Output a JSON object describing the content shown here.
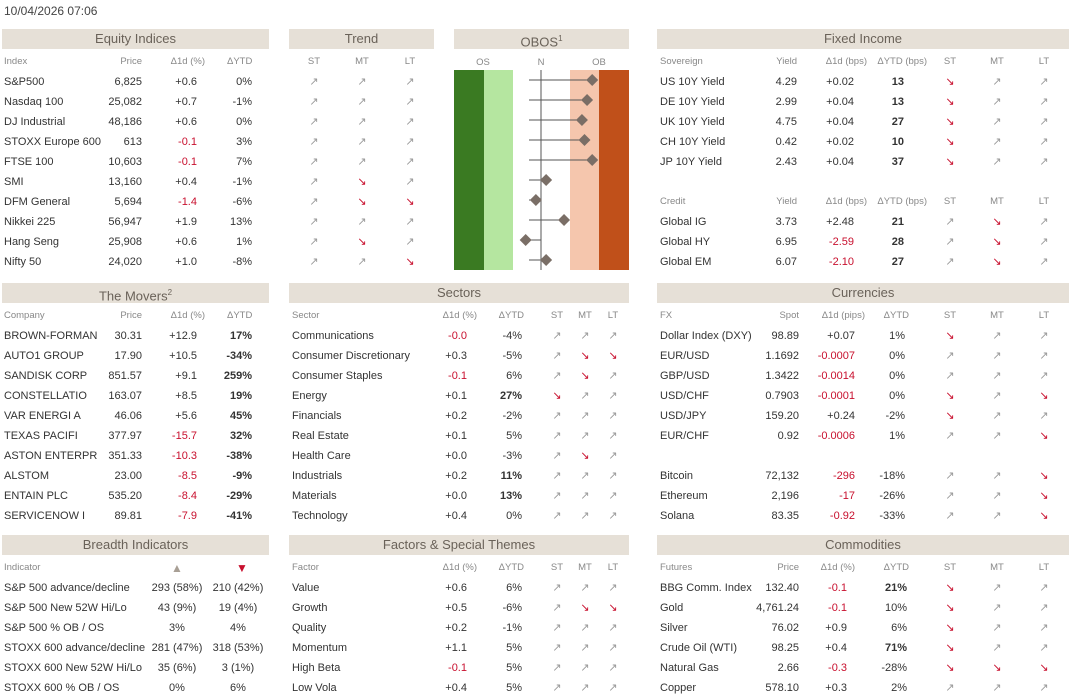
{
  "timestamp": "10/04/2026 07:06",
  "equity": {
    "title": "Equity Indices",
    "cols": [
      "Index",
      "Price",
      "Δ1d (%)",
      "ΔYTD"
    ],
    "rows": [
      {
        "name": "S&P500",
        "price": "6,825",
        "d1": "+0.6",
        "ytd": "0%",
        "d1neg": false
      },
      {
        "name": "Nasdaq 100",
        "price": "25,082",
        "d1": "+0.7",
        "ytd": "-1%",
        "d1neg": false
      },
      {
        "name": "DJ Industrial",
        "price": "48,186",
        "d1": "+0.6",
        "ytd": "0%",
        "d1neg": false
      },
      {
        "name": "STOXX Europe 600",
        "price": "613",
        "d1": "-0.1",
        "ytd": "3%",
        "d1neg": true
      },
      {
        "name": "FTSE 100",
        "price": "10,603",
        "d1": "-0.1",
        "ytd": "7%",
        "d1neg": true
      },
      {
        "name": "SMI",
        "price": "13,160",
        "d1": "+0.4",
        "ytd": "-1%",
        "d1neg": false
      },
      {
        "name": "DFM General",
        "price": "5,694",
        "d1": "-1.4",
        "ytd": "-6%",
        "d1neg": true
      },
      {
        "name": "Nikkei 225",
        "price": "56,947",
        "d1": "+1.9",
        "ytd": "13%",
        "d1neg": false
      },
      {
        "name": "Hang Seng",
        "price": "25,908",
        "d1": "+0.6",
        "ytd": "1%",
        "d1neg": false
      },
      {
        "name": "Nifty 50",
        "price": "24,020",
        "d1": "+1.0",
        "ytd": "-8%",
        "d1neg": false
      }
    ]
  },
  "trend": {
    "title": "Trend",
    "cols": [
      "ST",
      "MT",
      "LT"
    ],
    "rows": [
      [
        "up",
        "up",
        "up"
      ],
      [
        "up",
        "up",
        "up"
      ],
      [
        "up",
        "up",
        "up"
      ],
      [
        "up",
        "up",
        "up"
      ],
      [
        "up",
        "up",
        "up"
      ],
      [
        "up",
        "dn",
        "up"
      ],
      [
        "up",
        "dn",
        "dn"
      ],
      [
        "up",
        "up",
        "up"
      ],
      [
        "up",
        "dn",
        "up"
      ],
      [
        "up",
        "up",
        "dn"
      ]
    ]
  },
  "obos": {
    "title": "OBOS",
    "sup": "1",
    "labels": [
      "OS",
      "N",
      "OB"
    ],
    "colors": {
      "os_dark": "#3a7a22",
      "os_light": "#b5e6a0",
      "ob_light": "#f5c6ad",
      "ob_dark": "#c0501a",
      "marker": "#7a6e66"
    },
    "values": [
      2.0,
      1.8,
      1.6,
      1.7,
      2.0,
      0.2,
      -0.2,
      0.9,
      -0.6,
      0.2
    ]
  },
  "fixed_income": {
    "title": "Fixed Income",
    "cols": [
      "Sovereign",
      "Yield",
      "Δ1d (bps)",
      "ΔYTD (bps)",
      "ST",
      "MT",
      "LT"
    ],
    "sovereign": [
      {
        "name": "US 10Y Yield",
        "yield": "4.29",
        "d1": "+0.02",
        "ytd": "13",
        "st": "dn",
        "mt": "up",
        "lt": "up",
        "d1neg": false
      },
      {
        "name": "DE 10Y Yield",
        "yield": "2.99",
        "d1": "+0.04",
        "ytd": "13",
        "st": "dn",
        "mt": "up",
        "lt": "up",
        "d1neg": false
      },
      {
        "name": "UK 10Y Yield",
        "yield": "4.75",
        "d1": "+0.04",
        "ytd": "27",
        "st": "dn",
        "mt": "up",
        "lt": "up",
        "d1neg": false
      },
      {
        "name": "CH 10Y Yield",
        "yield": "0.42",
        "d1": "+0.02",
        "ytd": "10",
        "st": "dn",
        "mt": "up",
        "lt": "up",
        "d1neg": false
      },
      {
        "name": "JP 10Y Yield",
        "yield": "2.43",
        "d1": "+0.04",
        "ytd": "37",
        "st": "dn",
        "mt": "up",
        "lt": "up",
        "d1neg": false
      }
    ],
    "credit_cols": [
      "Credit",
      "Yield",
      "Δ1d (bps)",
      "ΔYTD (bps)",
      "ST",
      "MT",
      "LT"
    ],
    "credit": [
      {
        "name": "Global IG",
        "yield": "3.73",
        "d1": "+2.48",
        "ytd": "21",
        "st": "up",
        "mt": "dn",
        "lt": "up",
        "d1neg": false
      },
      {
        "name": "Global HY",
        "yield": "6.95",
        "d1": "-2.59",
        "ytd": "28",
        "st": "up",
        "mt": "dn",
        "lt": "up",
        "d1neg": true
      },
      {
        "name": "Global EM",
        "yield": "6.07",
        "d1": "-2.10",
        "ytd": "27",
        "st": "up",
        "mt": "dn",
        "lt": "up",
        "d1neg": true
      }
    ]
  },
  "movers": {
    "title": "The Movers",
    "sup": "2",
    "cols": [
      "Company",
      "Price",
      "Δ1d (%)",
      "ΔYTD"
    ],
    "rows": [
      {
        "name": "BROWN-FORMAN",
        "price": "30.31",
        "d1": "+12.9",
        "ytd": "17%",
        "d1neg": false
      },
      {
        "name": "AUTO1 GROUP",
        "price": "17.90",
        "d1": "+10.5",
        "ytd": "-34%",
        "d1neg": false
      },
      {
        "name": "SANDISK CORP",
        "price": "851.57",
        "d1": "+9.1",
        "ytd": "259%",
        "d1neg": false
      },
      {
        "name": "CONSTELLATIO",
        "price": "163.07",
        "d1": "+8.5",
        "ytd": "19%",
        "d1neg": false
      },
      {
        "name": "VAR ENERGI A",
        "price": "46.06",
        "d1": "+5.6",
        "ytd": "45%",
        "d1neg": false
      },
      {
        "name": "TEXAS PACIFI",
        "price": "377.97",
        "d1": "-15.7",
        "ytd": "32%",
        "d1neg": true
      },
      {
        "name": "ASTON ENTERPR",
        "price": "351.33",
        "d1": "-10.3",
        "ytd": "-38%",
        "d1neg": true
      },
      {
        "name": "ALSTOM",
        "price": "23.00",
        "d1": "-8.5",
        "ytd": "-9%",
        "d1neg": true
      },
      {
        "name": "ENTAIN PLC",
        "price": "535.20",
        "d1": "-8.4",
        "ytd": "-29%",
        "d1neg": true
      },
      {
        "name": "SERVICENOW I",
        "price": "89.81",
        "d1": "-7.9",
        "ytd": "-41%",
        "d1neg": true
      }
    ]
  },
  "sectors": {
    "title": "Sectors",
    "cols": [
      "Sector",
      "Δ1d (%)",
      "ΔYTD",
      "ST",
      "MT",
      "LT"
    ],
    "rows": [
      {
        "name": "Communications",
        "d1": "-0.0",
        "ytd": "-4%",
        "st": "up",
        "mt": "up",
        "lt": "up",
        "d1neg": true,
        "bold": false
      },
      {
        "name": "Consumer Discretionary",
        "d1": "+0.3",
        "ytd": "-5%",
        "st": "up",
        "mt": "dn",
        "lt": "dn",
        "d1neg": false,
        "bold": false
      },
      {
        "name": "Consumer Staples",
        "d1": "-0.1",
        "ytd": "6%",
        "st": "up",
        "mt": "dn",
        "lt": "up",
        "d1neg": true,
        "bold": false
      },
      {
        "name": "Energy",
        "d1": "+0.1",
        "ytd": "27%",
        "st": "dn",
        "mt": "up",
        "lt": "up",
        "d1neg": false,
        "bold": true
      },
      {
        "name": "Financials",
        "d1": "+0.2",
        "ytd": "-2%",
        "st": "up",
        "mt": "up",
        "lt": "up",
        "d1neg": false,
        "bold": false
      },
      {
        "name": "Real Estate",
        "d1": "+0.1",
        "ytd": "5%",
        "st": "up",
        "mt": "up",
        "lt": "up",
        "d1neg": false,
        "bold": false
      },
      {
        "name": "Health Care",
        "d1": "+0.0",
        "ytd": "-3%",
        "st": "up",
        "mt": "dn",
        "lt": "up",
        "d1neg": false,
        "bold": false
      },
      {
        "name": "Industrials",
        "d1": "+0.2",
        "ytd": "11%",
        "st": "up",
        "mt": "up",
        "lt": "up",
        "d1neg": false,
        "bold": true
      },
      {
        "name": "Materials",
        "d1": "+0.0",
        "ytd": "13%",
        "st": "up",
        "mt": "up",
        "lt": "up",
        "d1neg": false,
        "bold": true
      },
      {
        "name": "Technology",
        "d1": "+0.4",
        "ytd": "0%",
        "st": "up",
        "mt": "up",
        "lt": "up",
        "d1neg": false,
        "bold": false
      }
    ]
  },
  "currencies": {
    "title": "Currencies",
    "cols": [
      "FX",
      "Spot",
      "Δ1d (pips)",
      "ΔYTD",
      "ST",
      "MT",
      "LT"
    ],
    "fx": [
      {
        "name": "Dollar Index (DXY)",
        "spot": "98.89",
        "d1": "+0.07",
        "ytd": "1%",
        "st": "dn",
        "mt": "up",
        "lt": "up",
        "d1neg": false
      },
      {
        "name": "EUR/USD",
        "spot": "1.1692",
        "d1": "-0.0007",
        "ytd": "0%",
        "st": "up",
        "mt": "up",
        "lt": "up",
        "d1neg": true
      },
      {
        "name": "GBP/USD",
        "spot": "1.3422",
        "d1": "-0.0014",
        "ytd": "0%",
        "st": "up",
        "mt": "up",
        "lt": "up",
        "d1neg": true
      },
      {
        "name": "USD/CHF",
        "spot": "0.7903",
        "d1": "-0.0001",
        "ytd": "0%",
        "st": "dn",
        "mt": "up",
        "lt": "dn",
        "d1neg": true
      },
      {
        "name": "USD/JPY",
        "spot": "159.20",
        "d1": "+0.24",
        "ytd": "-2%",
        "st": "dn",
        "mt": "up",
        "lt": "up",
        "d1neg": false
      },
      {
        "name": "EUR/CHF",
        "spot": "0.92",
        "d1": "-0.0006",
        "ytd": "1%",
        "st": "up",
        "mt": "up",
        "lt": "dn",
        "d1neg": true
      }
    ],
    "crypto": [
      {
        "name": "Bitcoin",
        "spot": "72,132",
        "d1": "-296",
        "ytd": "-18%",
        "st": "up",
        "mt": "up",
        "lt": "dn",
        "d1neg": true
      },
      {
        "name": "Ethereum",
        "spot": "2,196",
        "d1": "-17",
        "ytd": "-26%",
        "st": "up",
        "mt": "up",
        "lt": "dn",
        "d1neg": true
      },
      {
        "name": "Solana",
        "spot": "83.35",
        "d1": "-0.92",
        "ytd": "-33%",
        "st": "up",
        "mt": "up",
        "lt": "dn",
        "d1neg": true
      }
    ]
  },
  "breadth": {
    "title": "Breadth Indicators",
    "cols": [
      "Indicator"
    ],
    "up_symbol": "▲",
    "down_symbol": "▼",
    "rows": [
      {
        "name": "S&P 500 advance/decline",
        "a": "293 (58%)",
        "b": "210 (42%)"
      },
      {
        "name": "S&P 500 New 52W Hi/Lo",
        "a": "43 (9%)",
        "b": "19 (4%)"
      },
      {
        "name": "S&P 500 % OB / OS",
        "a": "3%",
        "b": "4%"
      },
      {
        "name": "STOXX 600 advance/decline",
        "a": "281 (47%)",
        "b": "318 (53%)"
      },
      {
        "name": "STOXX 600 New 52W Hi/Lo",
        "a": "35 (6%)",
        "b": "3 (1%)"
      },
      {
        "name": "STOXX 600 % OB / OS",
        "a": "0%",
        "b": "6%"
      }
    ]
  },
  "factors": {
    "title": "Factors & Special Themes",
    "cols": [
      "Factor",
      "Δ1d (%)",
      "ΔYTD",
      "ST",
      "MT",
      "LT"
    ],
    "rows": [
      {
        "name": "Value",
        "d1": "+0.6",
        "ytd": "6%",
        "st": "up",
        "mt": "up",
        "lt": "up",
        "d1neg": false
      },
      {
        "name": "Growth",
        "d1": "+0.5",
        "ytd": "-6%",
        "st": "up",
        "mt": "dn",
        "lt": "dn",
        "d1neg": false
      },
      {
        "name": "Quality",
        "d1": "+0.2",
        "ytd": "-1%",
        "st": "up",
        "mt": "up",
        "lt": "up",
        "d1neg": false
      },
      {
        "name": "Momentum",
        "d1": "+1.1",
        "ytd": "5%",
        "st": "up",
        "mt": "up",
        "lt": "up",
        "d1neg": false
      },
      {
        "name": "High Beta",
        "d1": "-0.1",
        "ytd": "5%",
        "st": "up",
        "mt": "up",
        "lt": "up",
        "d1neg": true
      },
      {
        "name": "Low Vola",
        "d1": "+0.4",
        "ytd": "5%",
        "st": "up",
        "mt": "up",
        "lt": "up",
        "d1neg": false
      }
    ]
  },
  "commodities": {
    "title": "Commodities",
    "cols": [
      "Futures",
      "Price",
      "Δ1d (%)",
      "ΔYTD",
      "ST",
      "MT",
      "LT"
    ],
    "rows": [
      {
        "name": "BBG Comm. Index",
        "price": "132.40",
        "d1": "-0.1",
        "ytd": "21%",
        "st": "dn",
        "mt": "up",
        "lt": "up",
        "d1neg": true,
        "bold": true
      },
      {
        "name": "Gold",
        "price": "4,761.24",
        "d1": "-0.1",
        "ytd": "10%",
        "st": "dn",
        "mt": "up",
        "lt": "up",
        "d1neg": true,
        "bold": false
      },
      {
        "name": "Silver",
        "price": "76.02",
        "d1": "+0.9",
        "ytd": "6%",
        "st": "dn",
        "mt": "up",
        "lt": "up",
        "d1neg": false,
        "bold": false
      },
      {
        "name": "Crude Oil (WTI)",
        "price": "98.25",
        "d1": "+0.4",
        "ytd": "71%",
        "st": "dn",
        "mt": "up",
        "lt": "up",
        "d1neg": false,
        "bold": true
      },
      {
        "name": "Natural Gas",
        "price": "2.66",
        "d1": "-0.3",
        "ytd": "-28%",
        "st": "dn",
        "mt": "dn",
        "lt": "dn",
        "d1neg": true,
        "bold": false
      },
      {
        "name": "Copper",
        "price": "578.10",
        "d1": "+0.3",
        "ytd": "2%",
        "st": "up",
        "mt": "up",
        "lt": "up",
        "d1neg": false,
        "bold": false
      }
    ]
  }
}
